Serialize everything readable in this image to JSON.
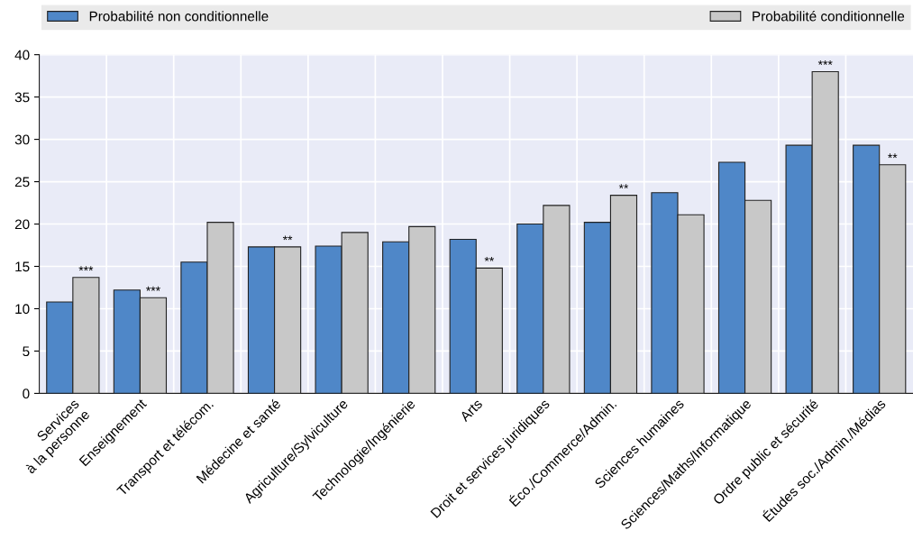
{
  "chart_data": {
    "type": "bar",
    "categories": [
      "Services\nà la personne",
      "Enseignement",
      "Transport et télécom.",
      "Médecine et santé",
      "Agriculture/Sylviculture",
      "Technologie/Ingénierie",
      "Arts",
      "Droit et services juridiques",
      "Éco./Commerce/Admin.",
      "Sciences humaines",
      "Sciences/Maths/Informatique",
      "Ordre public et sécurité",
      "Études soc./Admin./Médias"
    ],
    "series": [
      {
        "name": "Probabilité non conditionnelle",
        "color": "#4f87c8",
        "values": [
          10.8,
          12.2,
          15.5,
          17.3,
          17.4,
          17.9,
          18.2,
          20.0,
          20.2,
          23.7,
          27.3,
          29.3,
          29.3
        ]
      },
      {
        "name": "Probabilité conditionnelle",
        "color": "#c8c8c8",
        "values": [
          13.7,
          11.3,
          20.2,
          17.3,
          19.0,
          19.7,
          14.8,
          22.2,
          23.4,
          21.1,
          22.8,
          38.0,
          27.0
        ]
      }
    ],
    "ylim": [
      0,
      40
    ],
    "yticks": [
      0,
      5,
      10,
      15,
      20,
      25,
      30,
      35,
      40
    ],
    "grid": "y",
    "legend": "top",
    "annotations": [
      {
        "text": "***",
        "x": "Services\nà la personne",
        "y": 13.7
      },
      {
        "text": "***",
        "x": "Enseignement",
        "y": 11.3
      },
      {
        "text": "**",
        "x": "Médecine et santé",
        "y": 17.3
      },
      {
        "text": "**",
        "x": "Arts",
        "y": 14.8
      },
      {
        "text": "**",
        "x": "Éco./Commerce/Admin.",
        "y": 23.4
      },
      {
        "text": "***",
        "x": "Ordre public et sécurité",
        "y": 38.0
      },
      {
        "text": "**",
        "x": "Études soc./Admin./Médias",
        "y": 27.0
      }
    ]
  }
}
